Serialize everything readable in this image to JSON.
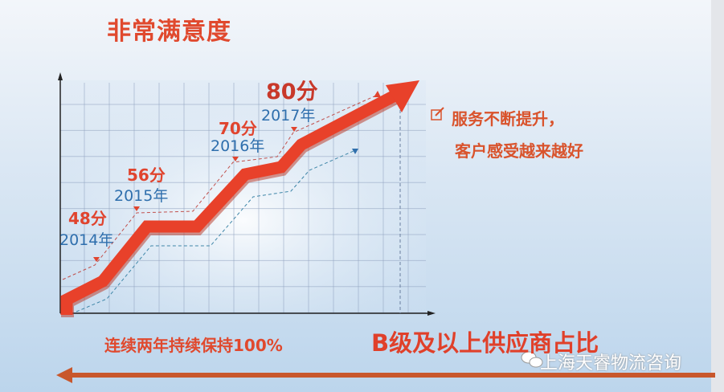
{
  "title": "非常满意度",
  "side_text": [
    "服务不断提升，",
    "客户感受越来越好"
  ],
  "side_icon": "edit-icon",
  "bottom_left": "连续两年持续保持100%",
  "bottom_right": "B级及以上供应商占比",
  "watermark": "上海天睿物流咨询",
  "colors": {
    "accent": "#e0442e",
    "year": "#2f6fad",
    "bottom_line": "#c8572c"
  },
  "chart_data": {
    "type": "line",
    "categories": [
      "2014年",
      "2015年",
      "2016年",
      "2017年"
    ],
    "values": [
      48,
      56,
      70,
      80
    ],
    "labels": [
      "48分",
      "56分",
      "70分",
      "80分"
    ],
    "grid": true
  }
}
